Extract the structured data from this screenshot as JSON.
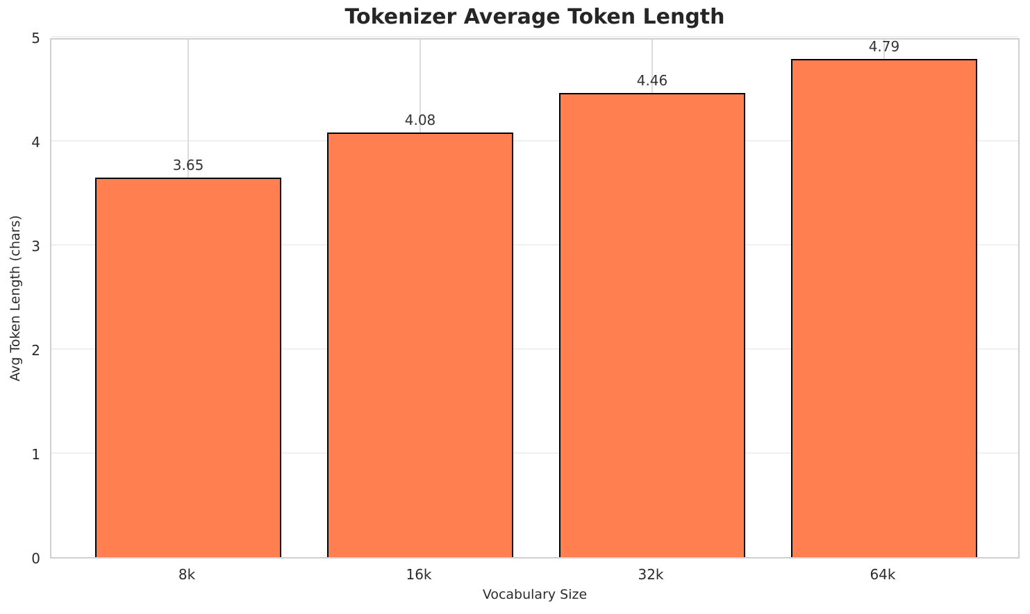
{
  "chart_data": {
    "type": "bar",
    "title": "Tokenizer Average Token Length",
    "xlabel": "Vocabulary Size",
    "ylabel": "Avg Token Length (chars)",
    "categories": [
      "8k",
      "16k",
      "32k",
      "64k"
    ],
    "values": [
      3.65,
      4.08,
      4.46,
      4.79
    ],
    "value_labels": [
      "3.65",
      "4.08",
      "4.46",
      "4.79"
    ],
    "ytick_labels": [
      "0",
      "1",
      "2",
      "3",
      "4",
      "5"
    ],
    "yticks": [
      0,
      1,
      2,
      3,
      4,
      5
    ],
    "ylim": [
      0,
      5
    ],
    "grid": true,
    "legend": "none",
    "colors": {
      "bar_fill": "#FF7F50",
      "bar_edge": "#000000",
      "grid_h": "#efefef",
      "grid_v": "#dcdcdc",
      "spine": "#cfcfcf",
      "text": "#2b2b2b",
      "title": "#262626",
      "background": "#ffffff"
    }
  }
}
